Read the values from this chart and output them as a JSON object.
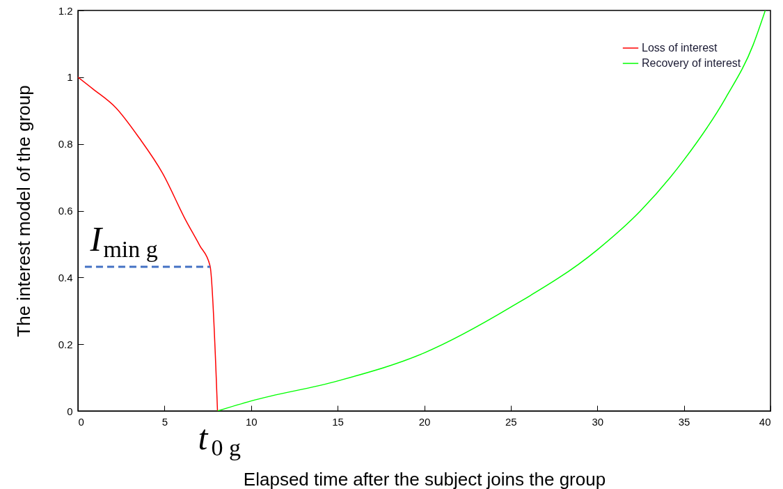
{
  "chart_data": {
    "type": "line",
    "xlabel": "Elapsed time after the subject joins the group",
    "ylabel": "The interest model of the group",
    "xlim": [
      0,
      40
    ],
    "xticks": [
      0,
      5,
      10,
      15,
      20,
      25,
      30,
      35,
      40
    ],
    "ylim": [
      0,
      1.2
    ],
    "yticks": [
      0,
      0.2,
      0.4,
      0.6,
      0.8,
      1,
      1.2
    ],
    "grid": false,
    "legend": "top right",
    "series": [
      {
        "name": "Loss of interest",
        "color": "#ff0000",
        "x": [
          0,
          0.86,
          2.2,
          3.54,
          4.88,
          6.22,
          7.03,
          7.63,
          8.06
        ],
        "values": [
          1,
          0.965,
          0.908,
          0.818,
          0.713,
          0.572,
          0.496,
          0.435,
          0
        ]
      },
      {
        "name": "Recovery of interest",
        "color": "#00ff00",
        "x": [
          8.06,
          10,
          15,
          20,
          25,
          30,
          32.5,
          35,
          37.4,
          39,
          39.7
        ],
        "values": [
          0,
          0.03,
          0.09,
          0.174,
          0.311,
          0.483,
          0.6,
          0.752,
          0.937,
          1.097,
          1.2
        ]
      },
      {
        "type": "line",
        "color": "#4472c4",
        "line_style": "dashed",
        "x": [
          0.4,
          7.63
        ],
        "values": [
          0.432,
          0.432
        ]
      }
    ],
    "annotations": [
      {
        "text": "I$_{min g}$",
        "x": 0.7,
        "y": 0.432
      },
      {
        "text": "t$_{0 g}$",
        "x": 8.06,
        "y": 0
      }
    ]
  }
}
